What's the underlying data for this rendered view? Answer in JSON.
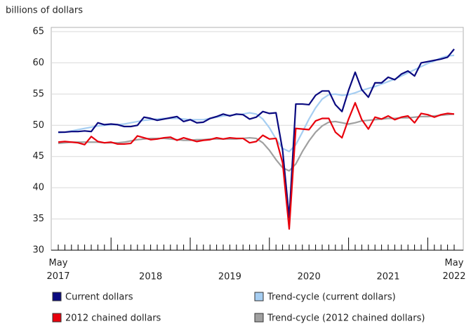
{
  "chart_data": {
    "type": "line",
    "y_axis_label": "billions of dollars",
    "categories": [
      "May 2017",
      null,
      null,
      null,
      null,
      null,
      null,
      null,
      null,
      null,
      null,
      null,
      null,
      null,
      null,
      null,
      null,
      null,
      null,
      null,
      null,
      null,
      null,
      null,
      null,
      null,
      null,
      null,
      null,
      null,
      null,
      null,
      null,
      null,
      null,
      null,
      null,
      null,
      null,
      null,
      null,
      null,
      null,
      null,
      null,
      null,
      null,
      null,
      null,
      null,
      null,
      null,
      null,
      null,
      null,
      null,
      null,
      null,
      null,
      null,
      "May 2022"
    ],
    "year_labels": [
      "2018",
      "2019",
      "2020",
      "2021"
    ],
    "ylim": [
      30,
      65
    ],
    "yticks": [
      30,
      35,
      40,
      45,
      50,
      55,
      60,
      65
    ],
    "grid": true,
    "series": [
      {
        "name": "Current dollars",
        "color": "#0a0a80",
        "values": [
          48.9,
          48.9,
          49.0,
          49.0,
          49.1,
          49.0,
          50.4,
          50.1,
          50.2,
          50.1,
          49.8,
          49.8,
          50.0,
          51.3,
          51.1,
          50.8,
          51.0,
          51.2,
          51.4,
          50.6,
          50.9,
          50.4,
          50.5,
          51.1,
          51.4,
          51.8,
          51.5,
          51.8,
          51.7,
          51.0,
          51.3,
          52.2,
          51.9,
          52.0,
          46.0,
          35.2,
          53.4,
          53.4,
          53.3,
          54.8,
          55.5,
          55.5,
          53.3,
          52.2,
          55.6,
          58.5,
          55.7,
          54.5,
          56.8,
          56.8,
          57.7,
          57.3,
          58.2,
          58.7,
          57.9,
          60.0,
          60.2,
          60.4,
          60.6,
          60.9,
          62.2
        ]
      },
      {
        "name": "Trend-cycle (current dollars)",
        "color": "#a6cef2",
        "values": [
          48.8,
          48.9,
          49.1,
          49.3,
          49.5,
          49.7,
          49.9,
          50.0,
          50.1,
          50.1,
          50.2,
          50.4,
          50.6,
          50.8,
          50.9,
          51.0,
          51.1,
          51.1,
          51.1,
          51.0,
          50.9,
          50.9,
          50.9,
          51.1,
          51.3,
          51.5,
          51.6,
          51.7,
          51.8,
          52.0,
          51.8,
          51.0,
          49.6,
          47.8,
          46.3,
          45.8,
          46.9,
          48.9,
          51.0,
          52.8,
          54.2,
          54.9,
          55.0,
          54.8,
          54.9,
          55.2,
          55.6,
          55.9,
          56.2,
          56.6,
          57.0,
          57.4,
          57.9,
          58.4,
          58.9,
          59.4,
          59.9,
          60.3,
          60.8,
          61.1,
          61.2
        ]
      },
      {
        "name": "2012 chained dollars",
        "color": "#e8000c",
        "values": [
          47.3,
          47.4,
          47.3,
          47.2,
          46.9,
          48.2,
          47.4,
          47.2,
          47.3,
          47.0,
          47.0,
          47.1,
          48.3,
          48.0,
          47.7,
          47.8,
          48.0,
          48.1,
          47.6,
          48.0,
          47.7,
          47.4,
          47.6,
          47.7,
          48.0,
          47.8,
          48.0,
          47.9,
          47.9,
          47.2,
          47.4,
          48.4,
          47.8,
          47.9,
          44.0,
          33.4,
          49.5,
          49.4,
          49.3,
          50.7,
          51.1,
          51.1,
          48.9,
          48.0,
          51.0,
          53.6,
          50.9,
          49.4,
          51.3,
          51.0,
          51.5,
          50.9,
          51.3,
          51.5,
          50.4,
          51.9,
          51.7,
          51.3,
          51.7,
          51.9,
          51.8
        ]
      },
      {
        "name": "Trend-cycle (2012 chained dollars)",
        "color": "#a0a0a0",
        "values": [
          47.1,
          47.2,
          47.3,
          47.3,
          47.3,
          47.3,
          47.3,
          47.2,
          47.2,
          47.2,
          47.3,
          47.5,
          47.7,
          47.8,
          47.9,
          47.9,
          47.9,
          47.8,
          47.7,
          47.6,
          47.6,
          47.7,
          47.7,
          47.8,
          47.8,
          47.8,
          47.8,
          47.8,
          47.9,
          48.0,
          47.9,
          47.2,
          46.0,
          44.5,
          43.2,
          42.7,
          43.8,
          45.8,
          47.5,
          48.9,
          49.9,
          50.5,
          50.6,
          50.4,
          50.2,
          50.4,
          50.7,
          50.8,
          50.9,
          51.0,
          51.1,
          51.1,
          51.2,
          51.2,
          51.3,
          51.4,
          51.4,
          51.5,
          51.6,
          51.7,
          51.8
        ]
      }
    ]
  }
}
